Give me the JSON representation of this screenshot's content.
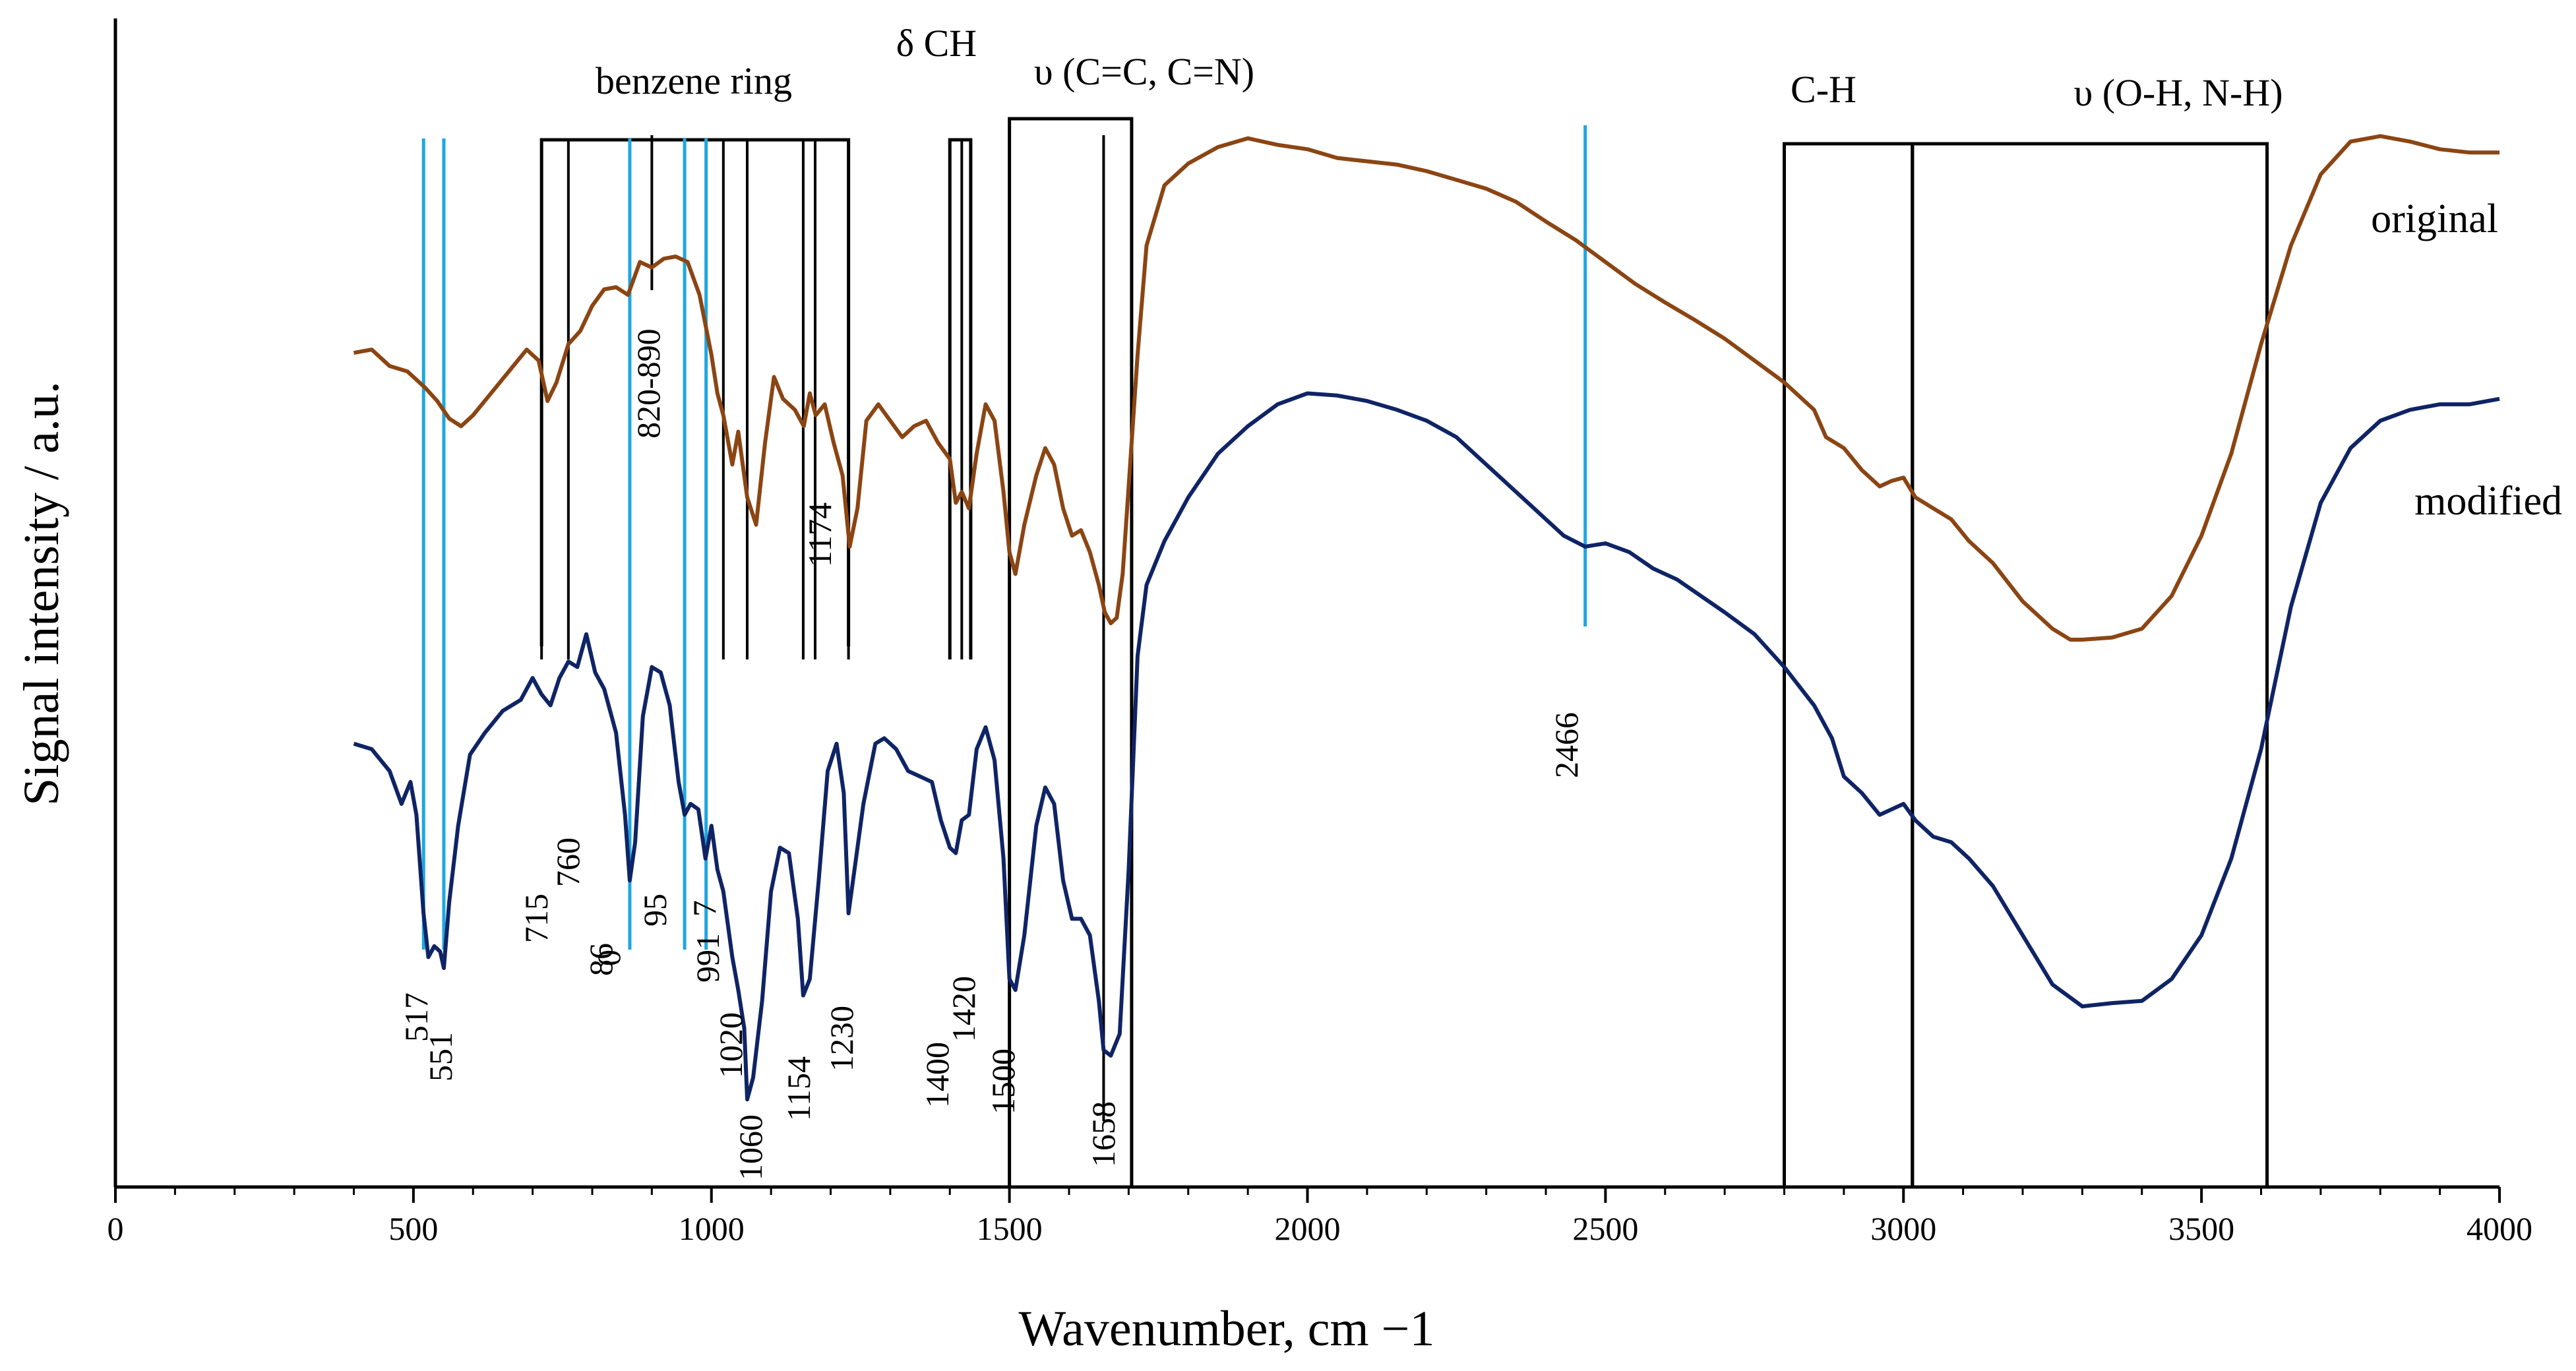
{
  "chart_data": {
    "type": "line",
    "title": "",
    "xlabel": "Wavenumber, cm −1",
    "ylabel": "Signal intensity / a.u.",
    "xlim": [
      0,
      4000
    ],
    "ylim": [
      0,
      100
    ],
    "x_ticks": [
      0,
      500,
      1000,
      1500,
      2000,
      2500,
      3000,
      3500,
      4000
    ],
    "x_tick_labels": [
      "0",
      "500",
      "1000",
      "1500",
      "2000",
      "2500",
      "3000",
      "3500",
      "4000"
    ],
    "x_minor_step": 100,
    "grid": false,
    "legend": "inline trace labels at right",
    "series": [
      {
        "name": "original",
        "color": "#8B4513",
        "points": [
          [
            400,
            76.2
          ],
          [
            430,
            76.5
          ],
          [
            460,
            75.0
          ],
          [
            490,
            74.5
          ],
          [
            520,
            73.0
          ],
          [
            540,
            71.8
          ],
          [
            560,
            70.2
          ],
          [
            580,
            69.5
          ],
          [
            600,
            70.5
          ],
          [
            630,
            72.5
          ],
          [
            660,
            74.5
          ],
          [
            690,
            76.5
          ],
          [
            710,
            75.5
          ],
          [
            725,
            71.8
          ],
          [
            740,
            73.5
          ],
          [
            760,
            77.0
          ],
          [
            780,
            78.2
          ],
          [
            800,
            80.5
          ],
          [
            820,
            82.0
          ],
          [
            840,
            82.2
          ],
          [
            860,
            81.5
          ],
          [
            880,
            84.5
          ],
          [
            900,
            84.0
          ],
          [
            920,
            84.8
          ],
          [
            940,
            85.0
          ],
          [
            960,
            84.5
          ],
          [
            980,
            81.5
          ],
          [
            1000,
            76.0
          ],
          [
            1010,
            72.5
          ],
          [
            1020,
            70.5
          ],
          [
            1035,
            66.0
          ],
          [
            1045,
            69.0
          ],
          [
            1060,
            63.0
          ],
          [
            1075,
            60.5
          ],
          [
            1090,
            68.0
          ],
          [
            1105,
            74.0
          ],
          [
            1120,
            72.0
          ],
          [
            1140,
            71.0
          ],
          [
            1155,
            69.5
          ],
          [
            1165,
            72.5
          ],
          [
            1175,
            70.5
          ],
          [
            1190,
            71.5
          ],
          [
            1205,
            68.0
          ],
          [
            1220,
            65.0
          ],
          [
            1232,
            58.5
          ],
          [
            1245,
            62.0
          ],
          [
            1260,
            70.0
          ],
          [
            1280,
            71.5
          ],
          [
            1300,
            70.0
          ],
          [
            1320,
            68.5
          ],
          [
            1340,
            69.5
          ],
          [
            1360,
            70.0
          ],
          [
            1380,
            68.0
          ],
          [
            1400,
            66.5
          ],
          [
            1410,
            62.5
          ],
          [
            1420,
            63.5
          ],
          [
            1432,
            62.0
          ],
          [
            1445,
            67.0
          ],
          [
            1460,
            71.5
          ],
          [
            1475,
            70.0
          ],
          [
            1490,
            63.5
          ],
          [
            1500,
            58.0
          ],
          [
            1510,
            56.0
          ],
          [
            1525,
            60.5
          ],
          [
            1545,
            65.0
          ],
          [
            1560,
            67.5
          ],
          [
            1575,
            66.0
          ],
          [
            1590,
            62.0
          ],
          [
            1605,
            59.5
          ],
          [
            1620,
            60.0
          ],
          [
            1635,
            58.0
          ],
          [
            1650,
            55.0
          ],
          [
            1660,
            52.5
          ],
          [
            1670,
            51.5
          ],
          [
            1680,
            52.0
          ],
          [
            1690,
            56.0
          ],
          [
            1700,
            64.0
          ],
          [
            1715,
            76.0
          ],
          [
            1730,
            86.0
          ],
          [
            1760,
            91.5
          ],
          [
            1800,
            93.5
          ],
          [
            1850,
            95.0
          ],
          [
            1900,
            95.8
          ],
          [
            1950,
            95.2
          ],
          [
            2000,
            94.8
          ],
          [
            2050,
            94.0
          ],
          [
            2100,
            93.7
          ],
          [
            2150,
            93.4
          ],
          [
            2200,
            92.8
          ],
          [
            2250,
            92.0
          ],
          [
            2300,
            91.2
          ],
          [
            2350,
            90.0
          ],
          [
            2400,
            88.2
          ],
          [
            2450,
            86.5
          ],
          [
            2500,
            84.5
          ],
          [
            2550,
            82.5
          ],
          [
            2600,
            80.8
          ],
          [
            2650,
            79.2
          ],
          [
            2700,
            77.5
          ],
          [
            2750,
            75.5
          ],
          [
            2800,
            73.5
          ],
          [
            2850,
            71.0
          ],
          [
            2870,
            68.5
          ],
          [
            2900,
            67.5
          ],
          [
            2930,
            65.5
          ],
          [
            2960,
            64.0
          ],
          [
            2980,
            64.5
          ],
          [
            3000,
            64.8
          ],
          [
            3020,
            63.0
          ],
          [
            3050,
            62.0
          ],
          [
            3080,
            61.0
          ],
          [
            3110,
            59.0
          ],
          [
            3150,
            57.0
          ],
          [
            3200,
            53.5
          ],
          [
            3250,
            51.0
          ],
          [
            3280,
            50.0
          ],
          [
            3300,
            50.0
          ],
          [
            3350,
            50.2
          ],
          [
            3400,
            51.0
          ],
          [
            3450,
            54.0
          ],
          [
            3500,
            59.5
          ],
          [
            3550,
            67.0
          ],
          [
            3600,
            77.0
          ],
          [
            3650,
            86.0
          ],
          [
            3700,
            92.5
          ],
          [
            3750,
            95.5
          ],
          [
            3800,
            96.0
          ],
          [
            3850,
            95.5
          ],
          [
            3900,
            94.8
          ],
          [
            3950,
            94.5
          ],
          [
            4000,
            94.5
          ]
        ]
      },
      {
        "name": "modified",
        "color": "#0F2465",
        "points": [
          [
            400,
            40.5
          ],
          [
            430,
            40.0
          ],
          [
            460,
            38.0
          ],
          [
            480,
            35.0
          ],
          [
            495,
            37.0
          ],
          [
            505,
            34.0
          ],
          [
            517,
            25.0
          ],
          [
            525,
            21.0
          ],
          [
            535,
            22.0
          ],
          [
            545,
            21.5
          ],
          [
            551,
            20.0
          ],
          [
            560,
            26.0
          ],
          [
            575,
            33.0
          ],
          [
            595,
            39.5
          ],
          [
            620,
            41.5
          ],
          [
            650,
            43.5
          ],
          [
            680,
            44.5
          ],
          [
            700,
            46.5
          ],
          [
            715,
            45.0
          ],
          [
            730,
            44.0
          ],
          [
            745,
            46.5
          ],
          [
            760,
            48.0
          ],
          [
            775,
            47.5
          ],
          [
            790,
            50.5
          ],
          [
            805,
            47.0
          ],
          [
            820,
            45.5
          ],
          [
            840,
            41.5
          ],
          [
            855,
            34.0
          ],
          [
            863,
            28.0
          ],
          [
            872,
            31.5
          ],
          [
            885,
            43.0
          ],
          [
            900,
            47.5
          ],
          [
            915,
            47.0
          ],
          [
            930,
            44.0
          ],
          [
            945,
            37.0
          ],
          [
            955,
            34.0
          ],
          [
            965,
            35.0
          ],
          [
            978,
            34.5
          ],
          [
            990,
            30.0
          ],
          [
            1000,
            33.0
          ],
          [
            1010,
            29.0
          ],
          [
            1020,
            27.0
          ],
          [
            1035,
            21.0
          ],
          [
            1045,
            18.0
          ],
          [
            1055,
            14.5
          ],
          [
            1060,
            8.0
          ],
          [
            1070,
            10.0
          ],
          [
            1085,
            17.0
          ],
          [
            1100,
            27.0
          ],
          [
            1115,
            31.0
          ],
          [
            1130,
            30.5
          ],
          [
            1145,
            24.5
          ],
          [
            1154,
            17.5
          ],
          [
            1165,
            19.0
          ],
          [
            1180,
            28.0
          ],
          [
            1195,
            38.0
          ],
          [
            1210,
            40.5
          ],
          [
            1222,
            36.0
          ],
          [
            1230,
            25.0
          ],
          [
            1240,
            29.0
          ],
          [
            1255,
            35.0
          ],
          [
            1275,
            40.5
          ],
          [
            1290,
            41.0
          ],
          [
            1310,
            40.0
          ],
          [
            1330,
            38.0
          ],
          [
            1350,
            37.5
          ],
          [
            1370,
            37.0
          ],
          [
            1385,
            33.5
          ],
          [
            1400,
            31.0
          ],
          [
            1410,
            30.5
          ],
          [
            1420,
            33.5
          ],
          [
            1432,
            34.0
          ],
          [
            1445,
            40.0
          ],
          [
            1460,
            42.0
          ],
          [
            1475,
            39.0
          ],
          [
            1490,
            30.0
          ],
          [
            1500,
            19.0
          ],
          [
            1510,
            18.0
          ],
          [
            1525,
            23.0
          ],
          [
            1545,
            33.0
          ],
          [
            1560,
            36.5
          ],
          [
            1575,
            35.0
          ],
          [
            1590,
            28.0
          ],
          [
            1605,
            24.5
          ],
          [
            1620,
            24.5
          ],
          [
            1635,
            23.0
          ],
          [
            1650,
            17.0
          ],
          [
            1658,
            12.5
          ],
          [
            1670,
            12.0
          ],
          [
            1685,
            14.0
          ],
          [
            1700,
            29.0
          ],
          [
            1715,
            48.5
          ],
          [
            1730,
            55.0
          ],
          [
            1760,
            59.0
          ],
          [
            1800,
            63.0
          ],
          [
            1850,
            67.0
          ],
          [
            1900,
            69.5
          ],
          [
            1950,
            71.5
          ],
          [
            2000,
            72.5
          ],
          [
            2050,
            72.3
          ],
          [
            2100,
            71.8
          ],
          [
            2150,
            71.0
          ],
          [
            2200,
            70.0
          ],
          [
            2250,
            68.5
          ],
          [
            2300,
            66.0
          ],
          [
            2350,
            63.5
          ],
          [
            2400,
            61.0
          ],
          [
            2430,
            59.5
          ],
          [
            2466,
            58.5
          ],
          [
            2500,
            58.8
          ],
          [
            2540,
            58.0
          ],
          [
            2580,
            56.5
          ],
          [
            2620,
            55.5
          ],
          [
            2660,
            54.0
          ],
          [
            2700,
            52.5
          ],
          [
            2750,
            50.5
          ],
          [
            2800,
            47.5
          ],
          [
            2850,
            44.0
          ],
          [
            2880,
            41.0
          ],
          [
            2900,
            37.5
          ],
          [
            2930,
            36.0
          ],
          [
            2960,
            34.0
          ],
          [
            2980,
            34.5
          ],
          [
            3000,
            35.0
          ],
          [
            3020,
            33.5
          ],
          [
            3050,
            32.0
          ],
          [
            3080,
            31.5
          ],
          [
            3110,
            30.0
          ],
          [
            3150,
            27.5
          ],
          [
            3200,
            23.0
          ],
          [
            3250,
            18.5
          ],
          [
            3300,
            16.5
          ],
          [
            3350,
            16.8
          ],
          [
            3400,
            17.0
          ],
          [
            3450,
            19.0
          ],
          [
            3500,
            23.0
          ],
          [
            3550,
            30.0
          ],
          [
            3600,
            40.0
          ],
          [
            3650,
            53.0
          ],
          [
            3700,
            62.5
          ],
          [
            3750,
            67.5
          ],
          [
            3800,
            70.0
          ],
          [
            3850,
            71.0
          ],
          [
            3900,
            71.5
          ],
          [
            3950,
            71.5
          ],
          [
            4000,
            72.0
          ]
        ]
      }
    ],
    "marker_lines": {
      "color_blue": "#1EA7E1",
      "color_black": "#000000",
      "blue": [
        517,
        551,
        863,
        955,
        991,
        2466
      ],
      "black": [
        715,
        760,
        900,
        1020,
        1060,
        1154,
        1174,
        1230,
        1400,
        1420,
        1658
      ]
    },
    "group_boxes": [
      {
        "name": "benzene ring",
        "x_start": 715,
        "x_end": 1230,
        "open_bottom": true
      },
      {
        "name": "δ CH",
        "x_start": 1400,
        "x_end": 1435,
        "open_bottom": true
      },
      {
        "name": "υ (C=C, C=N)",
        "x_start": 1500,
        "x_end": 1705,
        "open_bottom": false
      },
      {
        "name": "C-H",
        "x_start": 2800,
        "x_end": 3015,
        "open_bottom": false
      },
      {
        "name": "υ (O-H, N-H)",
        "x_start": 3015,
        "x_end": 3610,
        "open_bottom": false
      }
    ],
    "group_labels": [
      "benzene ring",
      "δ CH",
      "υ (C=C, C=N)",
      "C-H",
      "υ (O-H, N-H)"
    ],
    "trace_labels": [
      "original",
      "modified"
    ],
    "peak_labels": [
      "517",
      "551",
      "715",
      "760",
      "86",
      "0",
      "95",
      "991",
      "7",
      "1020",
      "1060",
      "1154",
      "1230",
      "1400",
      "1420",
      "1500",
      "1658",
      "820-890",
      "1174",
      "2466"
    ]
  }
}
